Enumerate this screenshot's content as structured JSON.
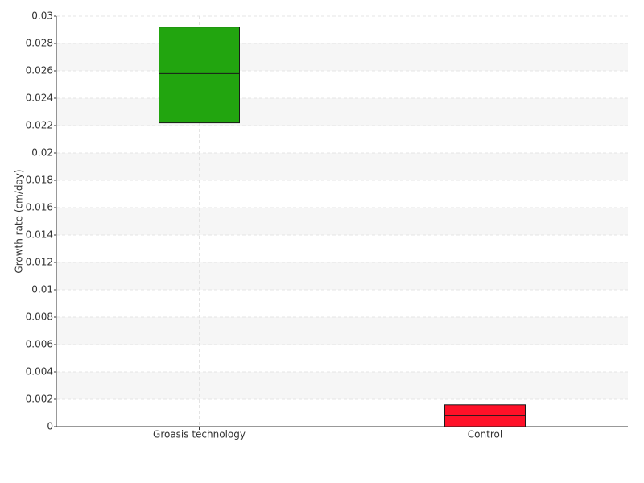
{
  "chart_data": {
    "type": "box",
    "y_label": "Growth rate (cm/day)",
    "categories": [
      "Groasis technology",
      "Control"
    ],
    "boxes": [
      {
        "q1": 0.0222,
        "median": 0.0258,
        "q3": 0.0292,
        "color": "#22a50f"
      },
      {
        "q1": 0,
        "median": 0.0008,
        "q3": 0.0016,
        "color": "#ff1128"
      }
    ],
    "ylim": [
      0,
      0.03
    ],
    "yticks": [
      0,
      0.002,
      0.004,
      0.006,
      0.008,
      0.01,
      0.012,
      0.014,
      0.016,
      0.018,
      0.02,
      0.022,
      0.024,
      0.026,
      0.028,
      0.03
    ],
    "grid": true
  }
}
